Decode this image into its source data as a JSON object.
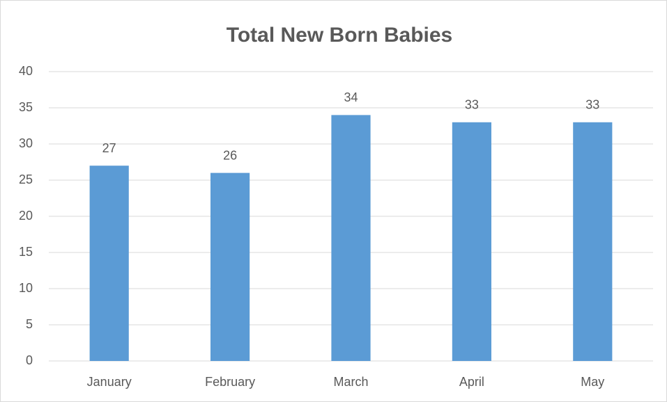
{
  "chart_data": {
    "type": "bar",
    "title": "Total New Born Babies",
    "categories": [
      "January",
      "February",
      "March",
      "April",
      "May"
    ],
    "values": [
      27,
      26,
      34,
      33,
      33
    ],
    "color": "#5b9bd5",
    "ylim": [
      0,
      40
    ],
    "yticks": [
      0,
      5,
      10,
      15,
      20,
      25,
      30,
      35,
      40
    ],
    "grid": true
  }
}
